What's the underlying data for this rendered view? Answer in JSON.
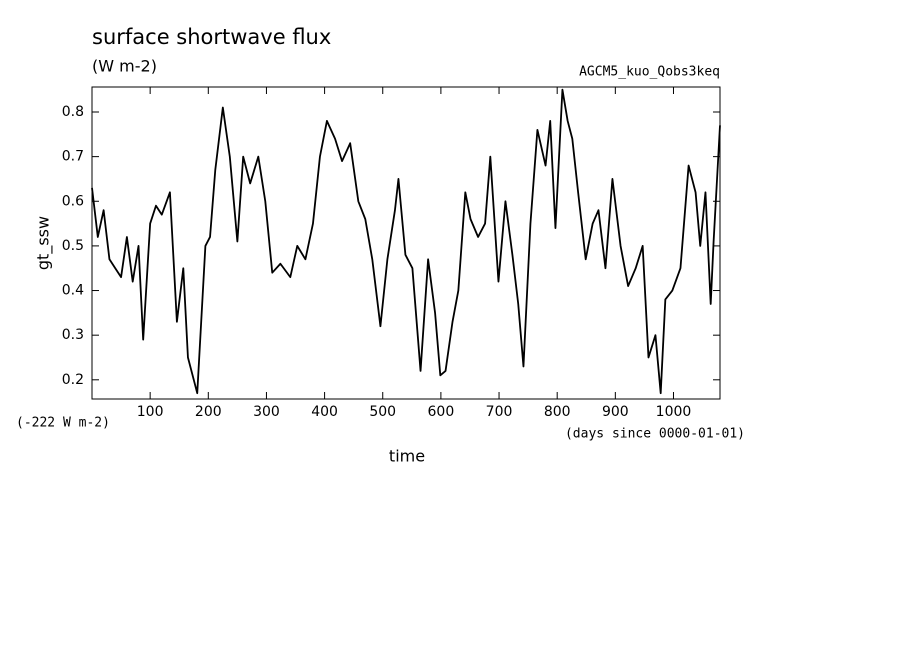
{
  "chart_data": {
    "type": "line",
    "title": "surface shortwave flux",
    "subtitle": "(W m-2)",
    "annotation": "AGCM5_kuo_Qobs3keq",
    "offset_label": "(-222 W m-2)",
    "x_label": "time",
    "x_units": "(days since 0000-01-01)",
    "y_label": "gt_ssw",
    "xlim": [
      0,
      1080
    ],
    "ylim": [
      0.157,
      0.856
    ],
    "xticks": [
      100,
      200,
      300,
      400,
      500,
      600,
      700,
      800,
      900,
      1000
    ],
    "yticks": [
      0.2,
      0.3,
      0.4,
      0.5,
      0.6,
      0.7,
      0.8
    ],
    "series": [
      {
        "name": "gt_ssw",
        "color": "#000000",
        "x": [
          0,
          10,
          20,
          30,
          40,
          50,
          60,
          70,
          80,
          88,
          100,
          110,
          120,
          134,
          146,
          157,
          165,
          181,
          195,
          203,
          212,
          225,
          237,
          250,
          260,
          272,
          286,
          298,
          310,
          324,
          341,
          353,
          367,
          380,
          392,
          404,
          418,
          430,
          444,
          458,
          470,
          482,
          496,
          508,
          521,
          527,
          539,
          551,
          565,
          578,
          590,
          599,
          608,
          620,
          630,
          642,
          651,
          664,
          676,
          685,
          699,
          711,
          723,
          733,
          742,
          754,
          766,
          780,
          788,
          797,
          809,
          818,
          826,
          836,
          849,
          861,
          871,
          883,
          895,
          909,
          922,
          935,
          947,
          957,
          969,
          978,
          986,
          998,
          1012,
          1026,
          1038,
          1046,
          1055,
          1064,
          1069,
          1080
        ],
        "values": [
          0.63,
          0.52,
          0.58,
          0.47,
          0.45,
          0.43,
          0.52,
          0.42,
          0.5,
          0.29,
          0.55,
          0.59,
          0.57,
          0.62,
          0.33,
          0.45,
          0.25,
          0.17,
          0.5,
          0.52,
          0.67,
          0.81,
          0.7,
          0.51,
          0.7,
          0.64,
          0.7,
          0.6,
          0.44,
          0.46,
          0.43,
          0.5,
          0.47,
          0.55,
          0.7,
          0.78,
          0.74,
          0.69,
          0.73,
          0.6,
          0.56,
          0.47,
          0.32,
          0.47,
          0.58,
          0.65,
          0.48,
          0.45,
          0.22,
          0.47,
          0.35,
          0.21,
          0.22,
          0.33,
          0.4,
          0.62,
          0.56,
          0.52,
          0.55,
          0.7,
          0.42,
          0.6,
          0.48,
          0.37,
          0.23,
          0.55,
          0.76,
          0.68,
          0.78,
          0.54,
          0.85,
          0.78,
          0.74,
          0.62,
          0.47,
          0.55,
          0.58,
          0.45,
          0.65,
          0.5,
          0.41,
          0.45,
          0.5,
          0.25,
          0.3,
          0.17,
          0.38,
          0.4,
          0.45,
          0.68,
          0.62,
          0.5,
          0.62,
          0.37,
          0.51,
          0.77
        ]
      }
    ]
  }
}
